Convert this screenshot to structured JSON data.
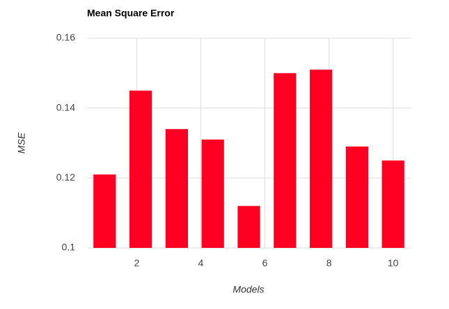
{
  "chart_data": {
    "type": "bar",
    "title": "Mean Square Error",
    "xlabel": "Models",
    "ylabel": "MSE",
    "x": [
      1,
      2.125,
      3.25,
      4.375,
      5.5,
      6.625,
      7.75,
      8.875,
      10
    ],
    "values": [
      0.121,
      0.145,
      0.134,
      0.131,
      0.112,
      0.15,
      0.151,
      0.129,
      0.125
    ],
    "color": "#ff0022",
    "xlim": [
      0.45,
      10.55
    ],
    "xticks": [
      2,
      4,
      6,
      8,
      10
    ],
    "ylim": [
      0.1,
      0.16
    ],
    "yticks": [
      0.1,
      0.12,
      0.14,
      0.16
    ],
    "grid": true
  }
}
